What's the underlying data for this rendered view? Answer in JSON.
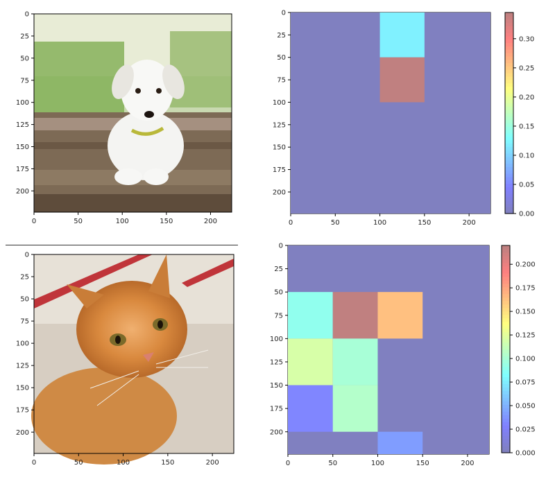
{
  "chart_data": [
    {
      "id": "dog-image",
      "type": "image",
      "subject": "white puppy on wooden boards, green background",
      "xlim": [
        0,
        224
      ],
      "ylim": [
        224,
        0
      ],
      "xticks": [
        0,
        50,
        100,
        150,
        200
      ],
      "yticks": [
        0,
        25,
        50,
        75,
        100,
        125,
        150,
        175,
        200
      ]
    },
    {
      "id": "dog-heatmap",
      "type": "heatmap",
      "cmap": "jet",
      "alpha": 0.5,
      "xlim": [
        0,
        224
      ],
      "ylim": [
        224,
        0
      ],
      "xticks": [
        0,
        50,
        100,
        150,
        200
      ],
      "yticks": [
        0,
        25,
        50,
        75,
        100,
        125,
        150,
        175,
        200
      ],
      "cell_size": 50,
      "vmin": 0,
      "vmax": 0.345,
      "colorbar_ticks": [
        "0.00",
        "0.05",
        "0.10",
        "0.15",
        "0.20",
        "0.25",
        "0.30"
      ],
      "nonzero_cells": [
        {
          "x": [
            100,
            150
          ],
          "y": [
            0,
            50
          ],
          "value": 0.12
        },
        {
          "x": [
            100,
            150
          ],
          "y": [
            50,
            100
          ],
          "value": 0.345
        }
      ]
    },
    {
      "id": "cat-image",
      "type": "image",
      "subject": "orange tabby cat, red bars in background",
      "xlim": [
        0,
        224
      ],
      "ylim": [
        224,
        0
      ],
      "xticks": [
        0,
        50,
        100,
        150,
        200
      ],
      "yticks": [
        0,
        25,
        50,
        75,
        100,
        125,
        150,
        175,
        200
      ]
    },
    {
      "id": "cat-heatmap",
      "type": "heatmap",
      "cmap": "jet",
      "alpha": 0.5,
      "xlim": [
        0,
        224
      ],
      "ylim": [
        224,
        0
      ],
      "xticks": [
        0,
        50,
        100,
        150,
        200
      ],
      "yticks": [
        0,
        25,
        50,
        75,
        100,
        125,
        150,
        175,
        200
      ],
      "cell_size": 50,
      "vmin": 0,
      "vmax": 0.22,
      "colorbar_ticks": [
        "0.000",
        "0.025",
        "0.050",
        "0.075",
        "0.100",
        "0.125",
        "0.150",
        "0.175",
        "0.200"
      ],
      "nonzero_cells": [
        {
          "x": [
            0,
            50
          ],
          "y": [
            50,
            100
          ],
          "value": 0.09
        },
        {
          "x": [
            50,
            100
          ],
          "y": [
            50,
            100
          ],
          "value": 0.22
        },
        {
          "x": [
            100,
            150
          ],
          "y": [
            50,
            100
          ],
          "value": 0.165
        },
        {
          "x": [
            0,
            50
          ],
          "y": [
            100,
            150
          ],
          "value": 0.12
        },
        {
          "x": [
            50,
            100
          ],
          "y": [
            100,
            150
          ],
          "value": 0.1
        },
        {
          "x": [
            0,
            50
          ],
          "y": [
            150,
            200
          ],
          "value": 0.03
        },
        {
          "x": [
            50,
            100
          ],
          "y": [
            150,
            200
          ],
          "value": 0.105
        },
        {
          "x": [
            100,
            150
          ],
          "y": [
            200,
            224
          ],
          "value": 0.04
        }
      ]
    }
  ]
}
